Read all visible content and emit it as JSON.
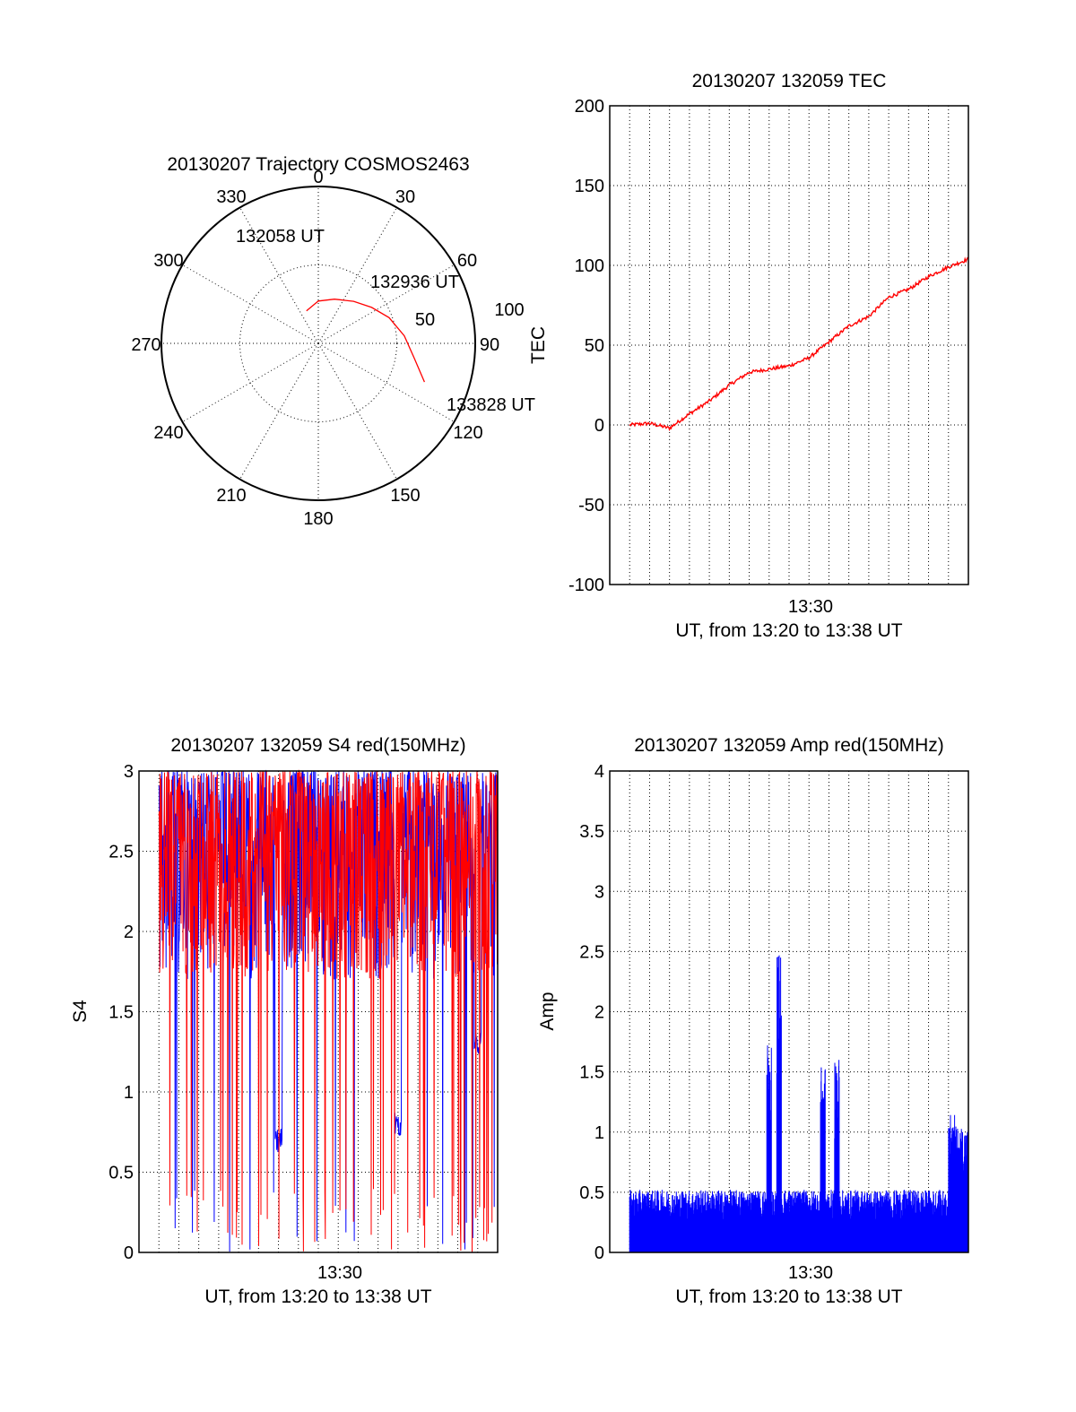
{
  "colors": {
    "red": "#ff0000",
    "blue": "#0000ff",
    "axis": "#000000"
  },
  "chart_data": [
    {
      "id": "polar",
      "type": "scatter",
      "subtype": "polar-trajectory",
      "title": "20130207 Trajectory COSMOS2463",
      "angle_labels": [
        "0",
        "30",
        "60",
        "90",
        "120",
        "150",
        "180",
        "210",
        "240",
        "270",
        "300",
        "330"
      ],
      "ring_labels": [
        "50",
        "100"
      ],
      "elevation_range": [
        0,
        100
      ],
      "grid": true,
      "series": [
        {
          "color": "#ff0000",
          "points": [
            {
              "azimuth": 340,
              "elevation": 22
            },
            {
              "azimuth": 0,
              "elevation": 27
            },
            {
              "azimuth": 20,
              "elevation": 30
            },
            {
              "azimuth": 40,
              "elevation": 35
            },
            {
              "azimuth": 56,
              "elevation": 41
            },
            {
              "azimuth": 70,
              "elevation": 48
            },
            {
              "azimuth": 85,
              "elevation": 55
            },
            {
              "azimuth": 99,
              "elevation": 62
            },
            {
              "azimuth": 110,
              "elevation": 72
            }
          ]
        }
      ],
      "annotations": [
        {
          "text": "132058 UT"
        },
        {
          "text": "132936 UT"
        },
        {
          "text": "133828 UT"
        }
      ]
    },
    {
      "id": "tec",
      "type": "line",
      "title": "20130207 132059 TEC",
      "ylabel": "TEC",
      "xlabel": "UT, from 13:20 to 13:38 UT",
      "xtick_labels": [
        "13:30"
      ],
      "ylim": [
        -100,
        200
      ],
      "yticks": [
        "-100",
        "-50",
        "0",
        "50",
        "100",
        "150",
        "200"
      ],
      "grid": true,
      "series": [
        {
          "color": "#ff0000",
          "x": [
            "13:21",
            "13:22",
            "13:23",
            "13:24",
            "13:25",
            "13:26",
            "13:27",
            "13:28",
            "13:29",
            "13:30",
            "13:31",
            "13:32",
            "13:33",
            "13:34",
            "13:35",
            "13:36",
            "13:37",
            "13:38"
          ],
          "values": [
            0,
            1,
            -2,
            7,
            15,
            25,
            33,
            35,
            37,
            42,
            52,
            62,
            68,
            80,
            85,
            93,
            99,
            104
          ]
        }
      ]
    },
    {
      "id": "s4",
      "type": "line",
      "title": "20130207 132059 S4 red(150MHz)",
      "ylabel": "S4",
      "xlabel": "UT, from 13:20 to 13:38 UT",
      "xtick_labels": [
        "13:30"
      ],
      "ylim": [
        0,
        3
      ],
      "yticks": [
        "0",
        "0.5",
        "1",
        "1.5",
        "2",
        "2.5",
        "3"
      ],
      "grid": true,
      "series": [
        {
          "color": "#0000ff",
          "description": "dense noisy trace, mostly near 2–3, frequent drops to 0"
        },
        {
          "color": "#ff0000",
          "description": "dense noisy trace, mostly near 2–3, frequent drops to 0"
        }
      ],
      "features": [
        {
          "series_color": "#0000ff",
          "x": "13:27",
          "value": 0.7
        },
        {
          "series_color": "#0000ff",
          "x": "13:33",
          "value": 0.8
        },
        {
          "series_color": "#0000ff",
          "x": "13:37",
          "value": 1.3
        }
      ]
    },
    {
      "id": "amp",
      "type": "line",
      "title": "20130207 132059 Amp red(150MHz)",
      "ylabel": "Amp",
      "xlabel": "UT, from 13:20 to 13:38 UT",
      "xtick_labels": [
        "13:30"
      ],
      "ylim": [
        0,
        4
      ],
      "yticks": [
        "0",
        "0.5",
        "1",
        "1.5",
        "2",
        "2.5",
        "3",
        "3.5",
        "4"
      ],
      "grid": true,
      "series": [
        {
          "color": "#0000ff",
          "baseline": 0.4,
          "peaks": [
            {
              "x": "13:28",
              "value": 1.8
            },
            {
              "x": "13:28.5",
              "value": 2.5
            },
            {
              "x": "13:30.7",
              "value": 1.55
            },
            {
              "x": "13:31.4",
              "value": 1.65
            },
            {
              "x": "13:37.2",
              "value": 1.15
            }
          ]
        }
      ]
    }
  ]
}
